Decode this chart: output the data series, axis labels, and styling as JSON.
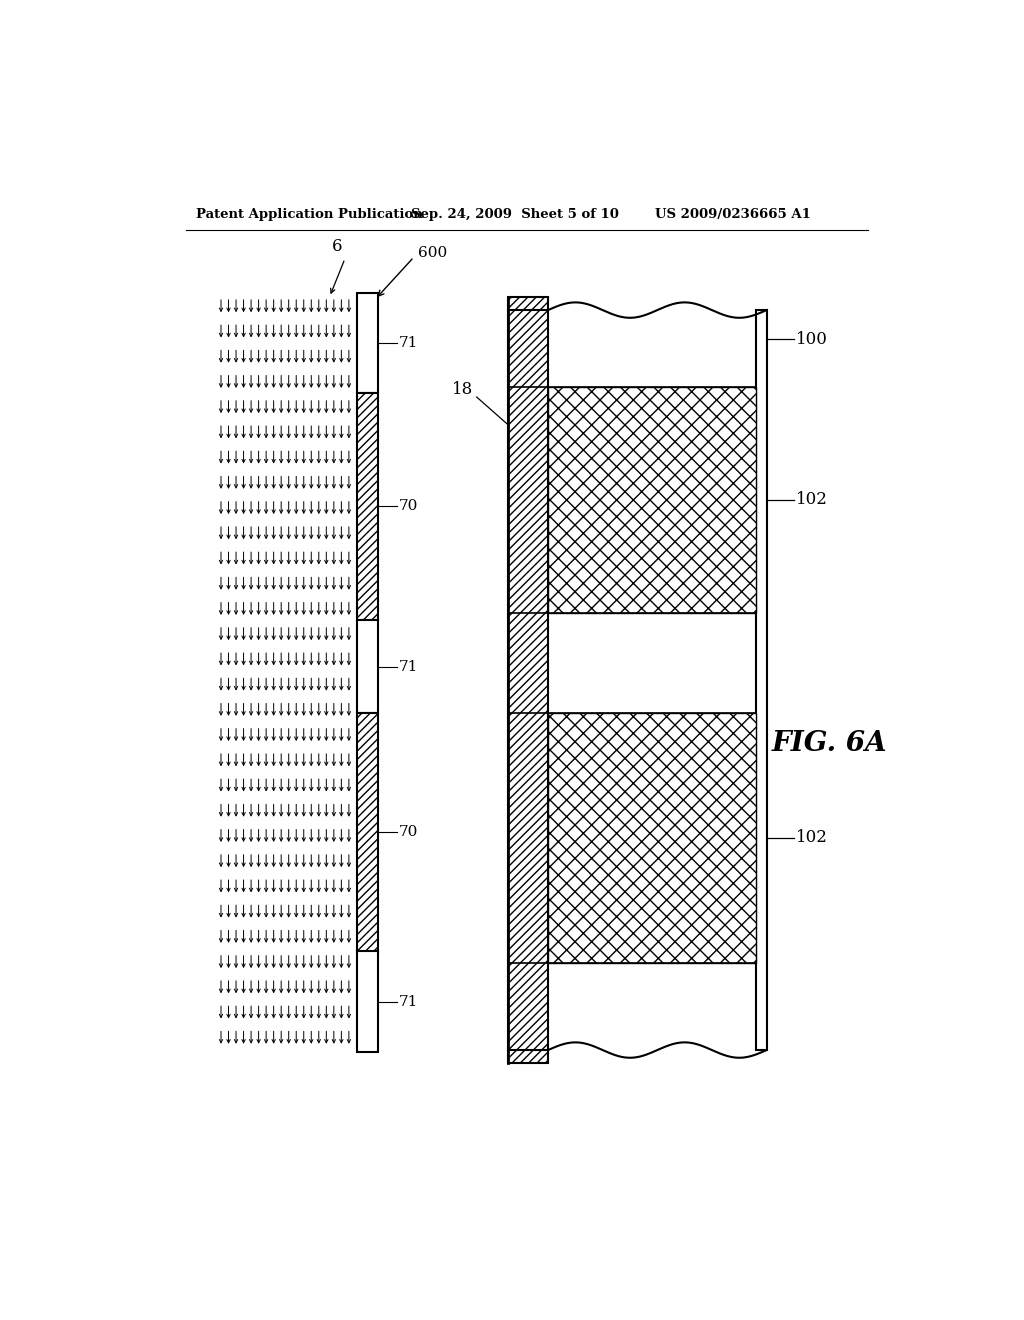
{
  "bg_color": "#ffffff",
  "header_left": "Patent Application Publication",
  "header_mid": "Sep. 24, 2009  Sheet 5 of 10",
  "header_right": "US 2009/0236665 A1",
  "fig_label": "FIG. 6A",
  "label_6": "6",
  "label_600": "600",
  "label_71a": "71",
  "label_70a": "70",
  "label_71b": "71",
  "label_70b": "70",
  "label_71c": "71",
  "label_18": "18",
  "label_100": "100",
  "label_102a": "102",
  "label_102b": "102"
}
